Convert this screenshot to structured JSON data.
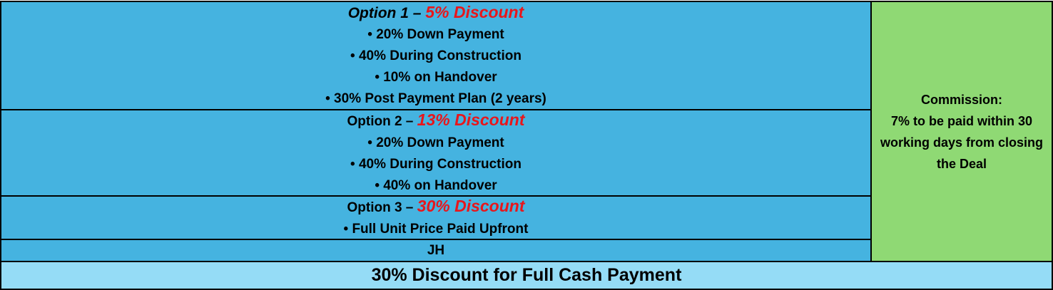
{
  "colors": {
    "cell_blue": "#45b3e0",
    "commission_green": "#8fd974",
    "banner_light_blue": "#95dcf6",
    "discount_red": "#e8161b"
  },
  "options": [
    {
      "prefix": "Option 1 – ",
      "discount": "5% Discount",
      "items": [
        "• 20% Down Payment",
        "• 40% During Construction",
        "• 10% on Handover",
        "• 30% Post Payment Plan (2 years)"
      ]
    },
    {
      "prefix": "Option 2 – ",
      "discount": "13% Discount",
      "items": [
        "• 20% Down Payment",
        "• 40% During Construction",
        "• 40% on Handover"
      ]
    },
    {
      "prefix": "Option 3 – ",
      "discount": "30% Discount",
      "items": [
        "• Full Unit Price Paid Upfront"
      ]
    }
  ],
  "initials": "JH",
  "commission": {
    "title": "Commission:",
    "lines": [
      "7% to be paid within 30",
      "working days from closing",
      "the Deal"
    ]
  },
  "banner": "30% Discount for Full Cash Payment"
}
